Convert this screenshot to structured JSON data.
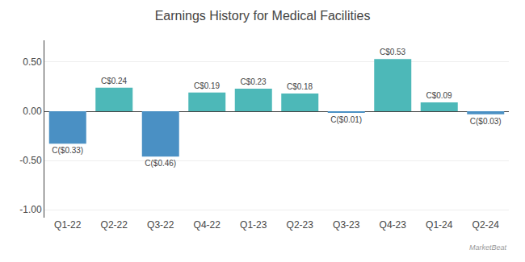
{
  "chart_data": {
    "type": "bar",
    "title": "Earnings History for Medical Facilities",
    "categories": [
      "Q1-22",
      "Q2-22",
      "Q3-22",
      "Q4-22",
      "Q1-23",
      "Q2-23",
      "Q3-23",
      "Q4-23",
      "Q1-24",
      "Q2-24"
    ],
    "values": [
      -0.33,
      0.24,
      -0.46,
      0.19,
      0.23,
      0.18,
      -0.01,
      0.53,
      0.09,
      -0.03
    ],
    "value_labels": [
      "C($0.33)",
      "C$0.24",
      "C($0.46)",
      "C$0.19",
      "C$0.23",
      "C$0.18",
      "C($0.01)",
      "C$0.53",
      "C$0.09",
      "C($0.03)"
    ],
    "data_labels": true,
    "colors": [
      "#4a90c4",
      "#4db8b8",
      "#4a90c4",
      "#4db8b8",
      "#4db8b8",
      "#4db8b8",
      "#4a90c4",
      "#4db8b8",
      "#4db8b8",
      "#4a90c4"
    ],
    "ylim": [
      -1.08,
      0.72
    ],
    "yticks": [
      {
        "value": -1.0,
        "label": "-1.00"
      },
      {
        "value": -0.5,
        "label": "-0.50"
      },
      {
        "value": 0.0,
        "label": "0.00"
      },
      {
        "value": 0.5,
        "label": "0.50"
      }
    ],
    "grid": true,
    "annotations": [
      "MarketBeat"
    ]
  }
}
